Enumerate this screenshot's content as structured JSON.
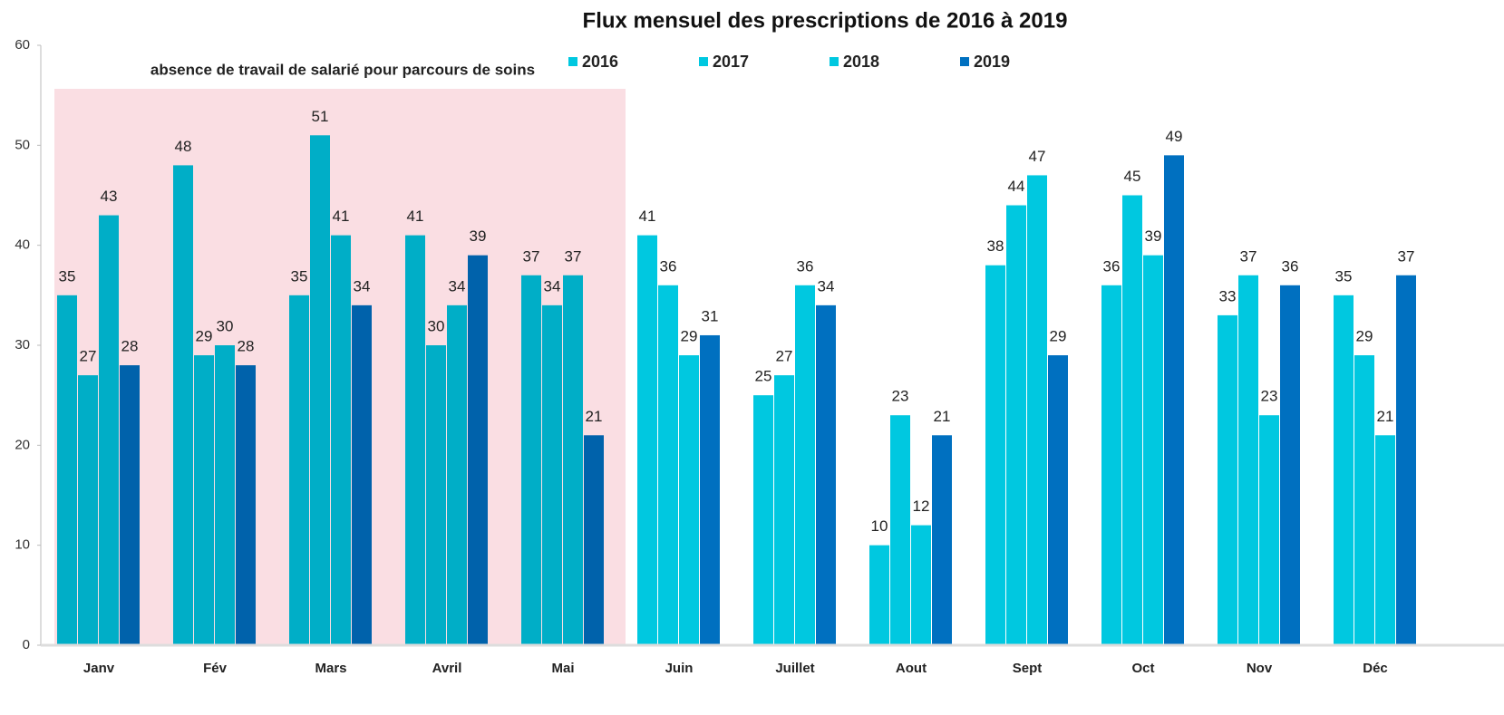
{
  "chart_data": {
    "type": "bar",
    "title": "Flux mensuel des prescriptions  de 2016 à 2019",
    "annotation": "absence de travail de  salarié pour parcours de soins",
    "categories": [
      "Janv",
      "Fév",
      "Mars",
      "Avril",
      "Mai",
      "Juin",
      "Juillet",
      "Aout",
      "Sept",
      "Oct",
      "Nov",
      "Déc"
    ],
    "series": [
      {
        "name": "2016",
        "color": "#00c8e0",
        "values": [
          35,
          48,
          35,
          41,
          37,
          41,
          25,
          10,
          38,
          36,
          33,
          35
        ]
      },
      {
        "name": "2017",
        "color": "#00c8e0",
        "values": [
          27,
          29,
          51,
          30,
          34,
          36,
          27,
          23,
          44,
          45,
          37,
          29
        ]
      },
      {
        "name": "2018",
        "color": "#00c8e0",
        "values": [
          43,
          30,
          41,
          34,
          37,
          29,
          36,
          12,
          47,
          39,
          23,
          21
        ]
      },
      {
        "name": "2019",
        "color": "#0070c0",
        "values": [
          28,
          28,
          34,
          39,
          21,
          31,
          34,
          21,
          29,
          49,
          36,
          37
        ]
      }
    ],
    "ylim": [
      0,
      60
    ],
    "yticks": [
      0,
      10,
      20,
      30,
      40,
      50,
      60
    ],
    "grid": false,
    "legend": "top"
  }
}
